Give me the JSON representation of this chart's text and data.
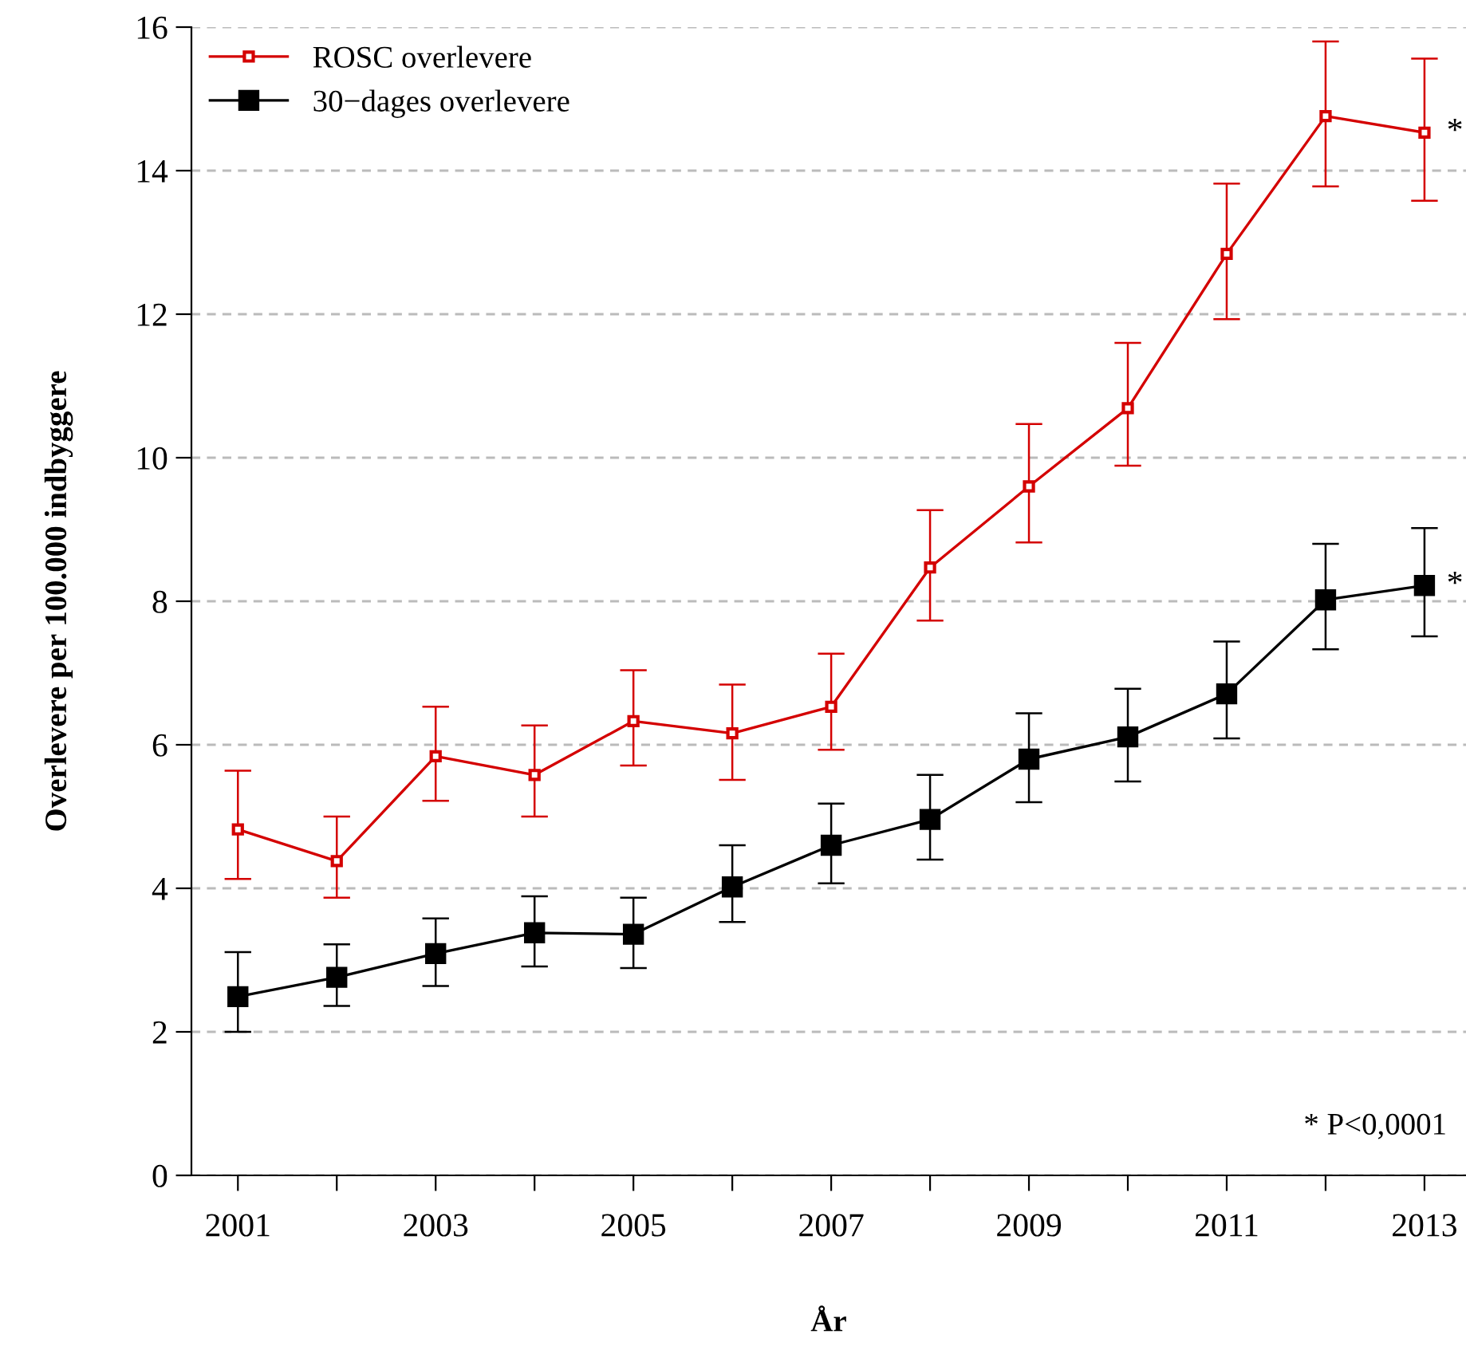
{
  "chart_data": {
    "type": "line",
    "xlabel": "År",
    "ylabel": "Overlevere per 100.000 indbyggere",
    "x": [
      2001,
      2002,
      2003,
      2004,
      2005,
      2006,
      2007,
      2008,
      2009,
      2010,
      2011,
      2012,
      2013
    ],
    "series": [
      {
        "name": "ROSC overlevere",
        "color": "#d40000",
        "marker": "square",
        "values": [
          4.82,
          4.38,
          5.84,
          5.58,
          6.33,
          6.16,
          6.53,
          8.47,
          9.6,
          10.69,
          12.84,
          14.76,
          14.53
        ],
        "errors": [
          [
            4.13,
            5.64
          ],
          [
            3.87,
            5.0
          ],
          [
            5.22,
            6.53
          ],
          [
            5.0,
            6.27
          ],
          [
            5.71,
            7.04
          ],
          [
            5.51,
            6.84
          ],
          [
            5.93,
            7.27
          ],
          [
            7.73,
            9.27
          ],
          [
            8.82,
            10.47
          ],
          [
            9.89,
            11.6
          ],
          [
            11.93,
            13.82
          ],
          [
            13.78,
            15.8
          ],
          [
            13.58,
            15.56
          ]
        ]
      },
      {
        "name": "30−dages overlevere",
        "color": "#000000",
        "marker": "square",
        "values": [
          2.49,
          2.76,
          3.09,
          3.38,
          3.36,
          4.02,
          4.6,
          4.96,
          5.8,
          6.11,
          6.71,
          8.02,
          8.22
        ],
        "errors": [
          [
            2.0,
            3.11
          ],
          [
            2.36,
            3.22
          ],
          [
            2.64,
            3.58
          ],
          [
            2.91,
            3.89
          ],
          [
            2.89,
            3.87
          ],
          [
            3.53,
            4.6
          ],
          [
            4.07,
            5.18
          ],
          [
            4.4,
            5.58
          ],
          [
            5.2,
            6.44
          ],
          [
            5.49,
            6.78
          ],
          [
            6.09,
            7.44
          ],
          [
            7.33,
            8.8
          ],
          [
            7.51,
            9.02
          ]
        ]
      }
    ],
    "xlim": [
      2000.53,
      2013.42
    ],
    "xticks": [
      2001,
      {
        "value": 2002,
        "label": null
      },
      2003,
      {
        "value": 2004,
        "label": null
      },
      2005,
      {
        "value": 2006,
        "label": null
      },
      2007,
      {
        "value": 2008,
        "label": null
      },
      2009,
      {
        "value": 2010,
        "label": null
      },
      2011,
      {
        "value": 2012,
        "label": null
      },
      2013
    ],
    "ylim": [
      0,
      16
    ],
    "yticks": [
      0,
      2,
      4,
      6,
      8,
      10,
      12,
      14,
      16
    ],
    "grid": "y",
    "legend": "top left",
    "annotations": [
      {
        "text": "*",
        "x": 2013,
        "y": 14.53
      },
      {
        "text": "*",
        "x": 2013,
        "y": 8.22
      },
      "* P<0,0001"
    ]
  }
}
